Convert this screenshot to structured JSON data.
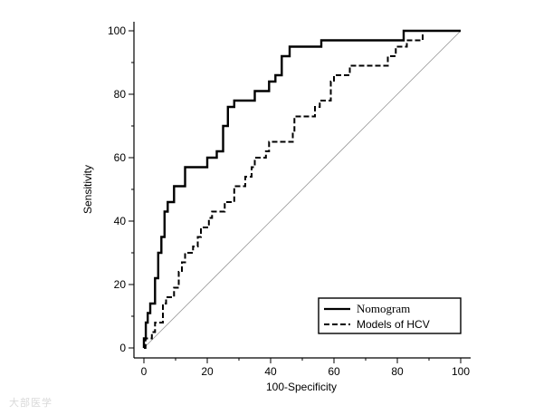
{
  "chart_data": {
    "type": "line",
    "title": "",
    "xlabel": "100-Specificity",
    "ylabel": "Sensitivity",
    "xlim": [
      0,
      100
    ],
    "ylim": [
      0,
      100
    ],
    "xticks": [
      "0",
      "20",
      "40",
      "60",
      "80",
      "100"
    ],
    "yticks": [
      "0",
      "20",
      "40",
      "60",
      "80",
      "100"
    ],
    "grid": false,
    "legend_position": "bottom-right",
    "diagonal_reference": true,
    "series": [
      {
        "name": "Nomogram",
        "style": "solid",
        "points": [
          [
            0,
            0
          ],
          [
            0,
            3
          ],
          [
            0.6,
            3
          ],
          [
            0.6,
            8
          ],
          [
            1.2,
            8
          ],
          [
            1.2,
            11
          ],
          [
            2,
            11
          ],
          [
            2,
            14
          ],
          [
            3.5,
            14
          ],
          [
            3.5,
            22
          ],
          [
            4.5,
            22
          ],
          [
            4.5,
            30
          ],
          [
            5.5,
            30
          ],
          [
            5.5,
            35
          ],
          [
            6.5,
            35
          ],
          [
            6.5,
            43
          ],
          [
            7.5,
            43
          ],
          [
            7.5,
            46
          ],
          [
            9.5,
            46
          ],
          [
            9.5,
            51
          ],
          [
            13,
            51
          ],
          [
            13,
            57
          ],
          [
            20,
            57
          ],
          [
            20,
            60
          ],
          [
            23,
            60
          ],
          [
            23,
            62
          ],
          [
            25,
            62
          ],
          [
            25,
            70
          ],
          [
            26.5,
            70
          ],
          [
            26.5,
            76
          ],
          [
            28.5,
            76
          ],
          [
            28.5,
            78
          ],
          [
            35,
            78
          ],
          [
            35,
            81
          ],
          [
            39.5,
            81
          ],
          [
            39.5,
            84
          ],
          [
            41.5,
            84
          ],
          [
            41.5,
            86
          ],
          [
            43.5,
            86
          ],
          [
            43.5,
            92
          ],
          [
            46,
            92
          ],
          [
            46,
            95
          ],
          [
            56,
            95
          ],
          [
            56,
            97
          ],
          [
            82,
            97
          ],
          [
            82,
            100
          ],
          [
            100,
            100
          ]
        ]
      },
      {
        "name": "Models of HCV",
        "style": "dashed",
        "points": [
          [
            0,
            0
          ],
          [
            0.5,
            0
          ],
          [
            0.5,
            3
          ],
          [
            2.5,
            3
          ],
          [
            2.5,
            5
          ],
          [
            3.5,
            5
          ],
          [
            3.5,
            8
          ],
          [
            6,
            8
          ],
          [
            6,
            14
          ],
          [
            7,
            14
          ],
          [
            7,
            16
          ],
          [
            9.5,
            16
          ],
          [
            9.5,
            19
          ],
          [
            11,
            19
          ],
          [
            11,
            24
          ],
          [
            12,
            24
          ],
          [
            12,
            27
          ],
          [
            13,
            27
          ],
          [
            13,
            30
          ],
          [
            15.5,
            30
          ],
          [
            15.5,
            32
          ],
          [
            17,
            32
          ],
          [
            17,
            35
          ],
          [
            18,
            35
          ],
          [
            18,
            38
          ],
          [
            20.5,
            38
          ],
          [
            20.5,
            41
          ],
          [
            21.5,
            41
          ],
          [
            21.5,
            43
          ],
          [
            25.5,
            43
          ],
          [
            25.5,
            46
          ],
          [
            28.5,
            46
          ],
          [
            28.5,
            51
          ],
          [
            32,
            51
          ],
          [
            32,
            54
          ],
          [
            34,
            54
          ],
          [
            34,
            57
          ],
          [
            35,
            57
          ],
          [
            35,
            60
          ],
          [
            38.5,
            60
          ],
          [
            38.5,
            62
          ],
          [
            39.5,
            62
          ],
          [
            39.5,
            65
          ],
          [
            47,
            65
          ],
          [
            47,
            68
          ],
          [
            47.5,
            68
          ],
          [
            47.5,
            73
          ],
          [
            54,
            73
          ],
          [
            54,
            76
          ],
          [
            55.5,
            76
          ],
          [
            55.5,
            78
          ],
          [
            59,
            78
          ],
          [
            59,
            84
          ],
          [
            60,
            84
          ],
          [
            60,
            86
          ],
          [
            65,
            86
          ],
          [
            65,
            89
          ],
          [
            77,
            89
          ],
          [
            77,
            92
          ],
          [
            79.5,
            92
          ],
          [
            79.5,
            95
          ],
          [
            83,
            95
          ],
          [
            83,
            97
          ],
          [
            88,
            97
          ],
          [
            88,
            100
          ],
          [
            100,
            100
          ]
        ]
      }
    ]
  },
  "watermark": "大部医学"
}
